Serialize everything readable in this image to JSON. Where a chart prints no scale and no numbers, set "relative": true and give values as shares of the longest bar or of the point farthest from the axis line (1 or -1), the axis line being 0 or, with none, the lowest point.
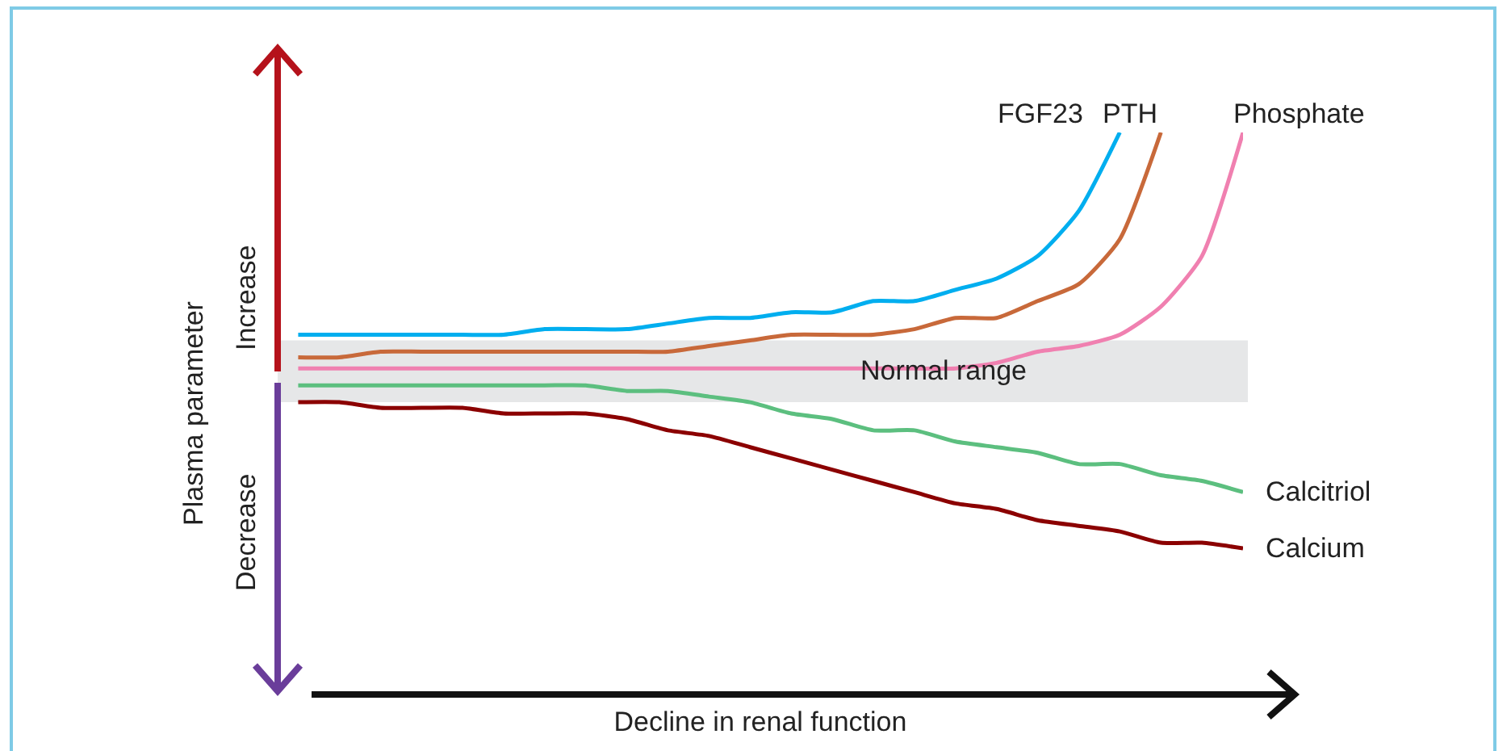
{
  "chart_data": {
    "type": "line",
    "relative": true,
    "xlabel": "Decline in renal function",
    "ylabel": "Plasma parameter",
    "categories": [
      null,
      null,
      null,
      null,
      null,
      null,
      null,
      null,
      null,
      null,
      null,
      null,
      null,
      null,
      null,
      null,
      null,
      null,
      null,
      null,
      null,
      null,
      null,
      null
    ],
    "series": [
      {
        "name": "FGF23",
        "color": "#00aeef",
        "values": [
          0.64,
          0.64,
          0.64,
          0.64,
          0.64,
          0.64,
          0.65,
          0.65,
          0.65,
          0.66,
          0.67,
          0.67,
          0.68,
          0.68,
          0.7,
          0.7,
          0.72,
          0.74,
          0.78,
          0.86,
          1,
          null,
          null,
          null
        ]
      },
      {
        "name": "PTH",
        "color": "#c8693a",
        "values": [
          0.6,
          0.6,
          0.61,
          0.61,
          0.61,
          0.61,
          0.61,
          0.61,
          0.61,
          0.61,
          0.62,
          0.63,
          0.64,
          0.64,
          0.64,
          0.65,
          0.67,
          0.67,
          0.7,
          0.73,
          0.81,
          1,
          null,
          null
        ]
      },
      {
        "name": "Phosphate",
        "color": "#f080b0",
        "values": [
          0.58,
          0.58,
          0.58,
          0.58,
          0.58,
          0.58,
          0.58,
          0.58,
          0.58,
          0.58,
          0.58,
          0.58,
          0.58,
          0.58,
          0.58,
          0.58,
          0.58,
          0.59,
          0.61,
          0.62,
          0.64,
          0.69,
          0.78,
          1
        ]
      },
      {
        "name": "Calcitriol",
        "color": "#5cbf7f",
        "values": [
          0.55,
          0.55,
          0.55,
          0.55,
          0.55,
          0.55,
          0.55,
          0.55,
          0.54,
          0.54,
          0.53,
          0.52,
          0.5,
          0.49,
          0.47,
          0.47,
          0.45,
          0.44,
          0.43,
          0.41,
          0.41,
          0.39,
          0.38,
          0.36
        ]
      },
      {
        "name": "Calcium",
        "color": "#8b0000",
        "values": [
          0.52,
          0.52,
          0.51,
          0.51,
          0.51,
          0.5,
          0.5,
          0.5,
          0.49,
          0.47,
          0.46,
          0.44,
          0.42,
          0.4,
          0.38,
          0.36,
          0.34,
          0.33,
          0.31,
          0.3,
          0.29,
          0.27,
          0.27,
          0.26
        ]
      }
    ],
    "bands": [
      {
        "axis": "y",
        "from": 0.52,
        "to": 0.63,
        "label": "Normal range",
        "color": "#e6e7e8"
      }
    ],
    "annotations": [
      "Increase",
      "Decrease"
    ],
    "legend": false,
    "grid": false,
    "marker": "none",
    "line_style": "solid"
  }
}
